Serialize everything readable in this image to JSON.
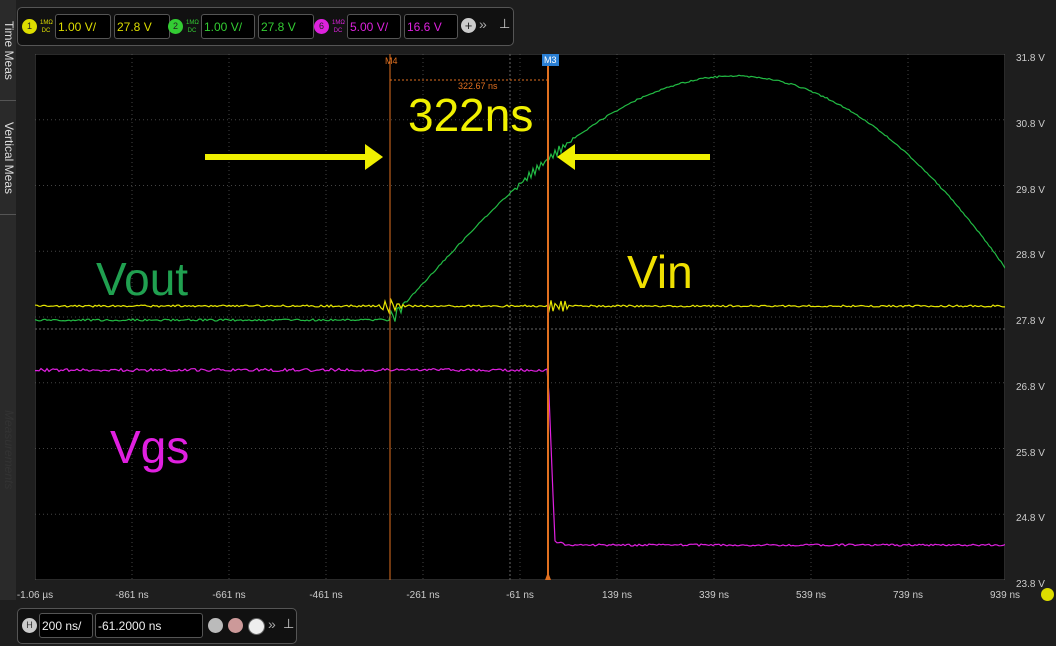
{
  "side_tabs": [
    "Time Meas",
    "Vertical Meas",
    "Measurements"
  ],
  "channels": [
    {
      "num": "1",
      "coupling": "1MΩ DC",
      "scale": "1.00 V/",
      "offset": "27.8 V",
      "color": "#e6e600"
    },
    {
      "num": "2",
      "coupling": "1MΩ DC",
      "scale": "1.00 V/",
      "offset": "27.8 V",
      "color": "#22bb44"
    },
    {
      "num": "6",
      "coupling": "1MΩ DC",
      "scale": "5.00 V/",
      "offset": "16.6 V",
      "color": "#e020e0"
    }
  ],
  "y_ticks": [
    "31.8 V",
    "30.8 V",
    "29.8 V",
    "28.8 V",
    "27.8 V",
    "26.8 V",
    "25.8 V",
    "24.8 V",
    "23.8 V"
  ],
  "x_ticks": [
    "-1.06 µs",
    "-861 ns",
    "-661 ns",
    "-461 ns",
    "-261 ns",
    "-61 ns",
    "139 ns",
    "339 ns",
    "539 ns",
    "739 ns",
    "939 ns"
  ],
  "markers": {
    "m4": "M4",
    "m3": "M3",
    "delta": "322.67 ns"
  },
  "annotations": {
    "delay": "322ns",
    "vout": "Vout",
    "vin": "Vin",
    "vgs": "Vgs"
  },
  "horizontal": {
    "label": "H",
    "scale": "200 ns/",
    "position": "-61.2000 ns"
  }
}
